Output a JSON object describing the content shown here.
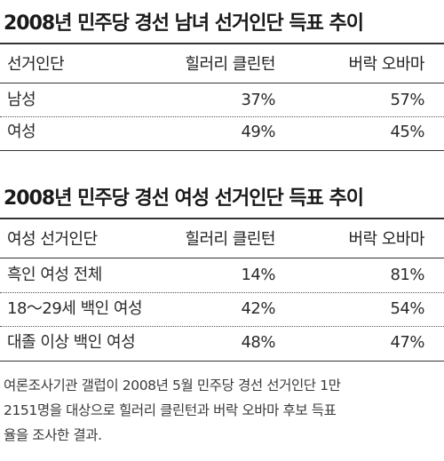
{
  "table1": {
    "title": "2008년 민주당 경선 남녀 선거인단 득표 추이",
    "headers": [
      "선거인단",
      "힐러리 클린턴",
      "버락 오바마"
    ],
    "rows": [
      [
        "남성",
        "37%",
        "57%"
      ],
      [
        "여성",
        "49%",
        "45%"
      ]
    ]
  },
  "table2": {
    "title": "2008년 민주당 경선 여성 선거인단 득표 추이",
    "headers": [
      "여성 선거인단",
      "힐러리 클린턴",
      "버락 오바마"
    ],
    "rows": [
      [
        "흑인 여성 전체",
        "14%",
        "81%"
      ],
      [
        "18～29세 백인 여성",
        "42%",
        "54%"
      ],
      [
        "대졸 이상 백인 여성",
        "48%",
        "47%"
      ]
    ]
  },
  "note": {
    "lines": [
      "여론조사기관 갤럽이 2008년 5월 민주당 경선 선거인단 1만",
      "2151명을 대상으로 힐러리 클린턴과 버락 오바마 후보 득표",
      "율을 조사한 결과."
    ]
  }
}
